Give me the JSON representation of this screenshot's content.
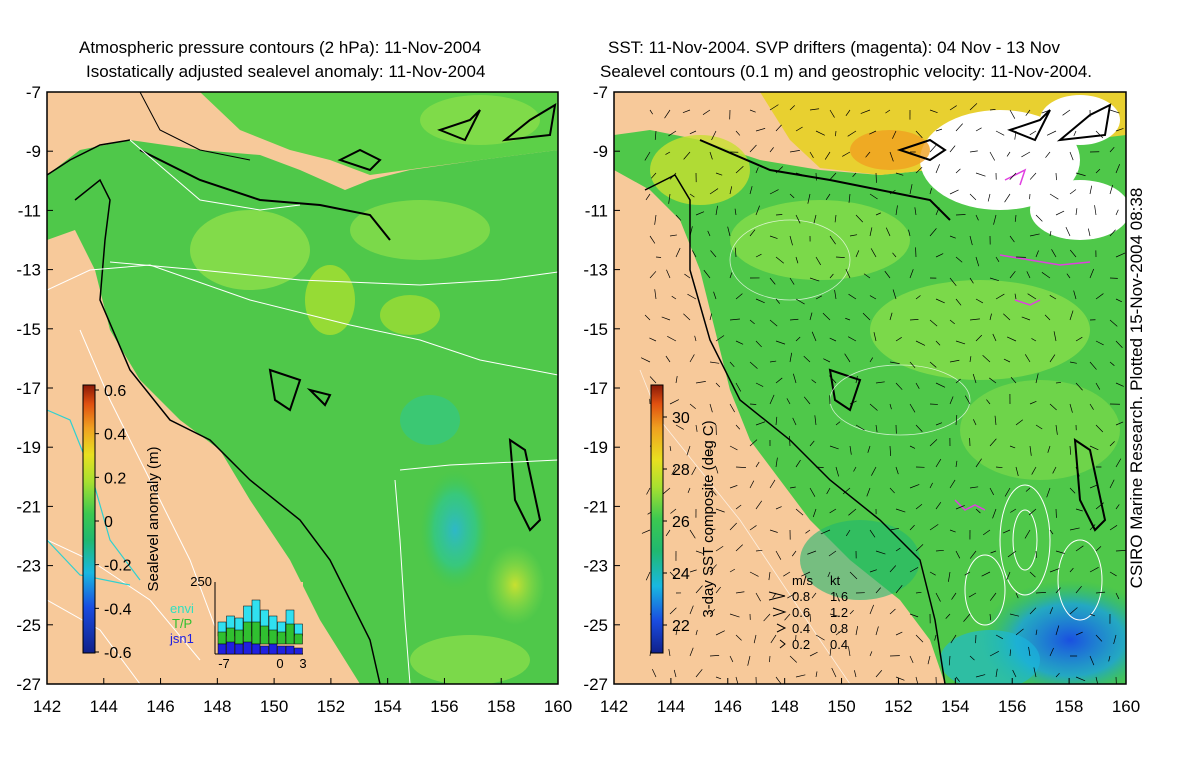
{
  "left_panel": {
    "title_line1": "Atmospheric pressure contours (2 hPa): 11-Nov-2004",
    "title_line2": "Isostatically adjusted sealevel anomaly: 11-Nov-2004",
    "colorbar": {
      "label": "Sealevel anomaly (m)",
      "ticks": [
        "0.6",
        "0.4",
        "0.2",
        "0",
        "-0.2",
        "-0.4",
        "-0.6"
      ]
    },
    "histogram": {
      "max_label": "250",
      "legend": [
        "envi",
        "T/P",
        "jsn1"
      ],
      "x_ticks": [
        "-7",
        "0",
        "3"
      ]
    }
  },
  "right_panel": {
    "title_line1": "SST: 11-Nov-2004. SVP drifters (magenta): 04 Nov - 13 Nov",
    "title_line2": "Sealevel contours (0.1 m) and geostrophic velocity: 11-Nov-2004.",
    "colorbar": {
      "label": "3-day SST composite (deg C)",
      "ticks": [
        "30",
        "28",
        "26",
        "24",
        "22"
      ]
    },
    "velocity_legend": {
      "header_ms": "m/s",
      "header_kt": "kt",
      "rows": [
        {
          "ms": "0.8",
          "kt": "1.6"
        },
        {
          "ms": "0.6",
          "kt": "1.2"
        },
        {
          "ms": "0.4",
          "kt": "0.8"
        },
        {
          "ms": "0.2",
          "kt": "0.4"
        }
      ]
    }
  },
  "axes": {
    "x_ticks": [
      "142",
      "144",
      "146",
      "148",
      "150",
      "152",
      "154",
      "156",
      "158",
      "160"
    ],
    "y_ticks": [
      "-7",
      "-9",
      "-11",
      "-13",
      "-15",
      "-17",
      "-19",
      "-21",
      "-23",
      "-25",
      "-27"
    ]
  },
  "credit": "CSIRO Marine Research. Plotted 15-Nov-2004 08:38",
  "colors": {
    "land": "#f7c99a",
    "ocean_green": "#4fc84a",
    "ocean_light": "#8ee04a",
    "cold_blue": "#2e7fe0",
    "drifter": "#e040e0"
  }
}
